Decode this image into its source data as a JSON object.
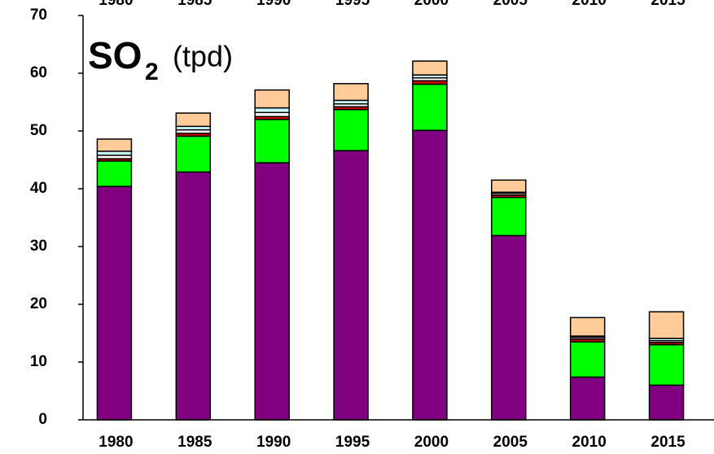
{
  "chart_data": {
    "type": "stacked_bar",
    "title": {
      "main": "SO",
      "subscript": "2",
      "unit": "(tpd)"
    },
    "categories": [
      "1980",
      "1985",
      "1990",
      "1995",
      "2000",
      "2005",
      "2010",
      "2015"
    ],
    "series": [
      {
        "color": "#800080",
        "values": [
          40.4,
          42.9,
          44.5,
          46.6,
          50.1,
          31.9,
          7.4,
          6.0
        ]
      },
      {
        "color": "#00ff00",
        "values": [
          4.4,
          6.2,
          7.5,
          7.1,
          8.0,
          6.6,
          6.1,
          7.0
        ]
      },
      {
        "color": "#cc0000",
        "values": [
          0.4,
          0.5,
          0.5,
          0.5,
          0.6,
          0.4,
          0.5,
          0.4
        ]
      },
      {
        "color": "#ffffff",
        "values": [
          0.6,
          0.6,
          0.7,
          0.5,
          0.5,
          0.3,
          0.3,
          0.3
        ]
      },
      {
        "color": "#ccffff",
        "values": [
          0.7,
          0.6,
          0.8,
          0.6,
          0.5,
          0.2,
          0.2,
          0.4
        ]
      },
      {
        "color": "#ffcc99",
        "values": [
          2.1,
          2.3,
          3.1,
          2.9,
          2.4,
          2.1,
          3.2,
          4.6
        ]
      }
    ],
    "ylim": [
      0,
      70
    ],
    "yticks": [
      0,
      10,
      20,
      30,
      40,
      50,
      60,
      70
    ]
  }
}
